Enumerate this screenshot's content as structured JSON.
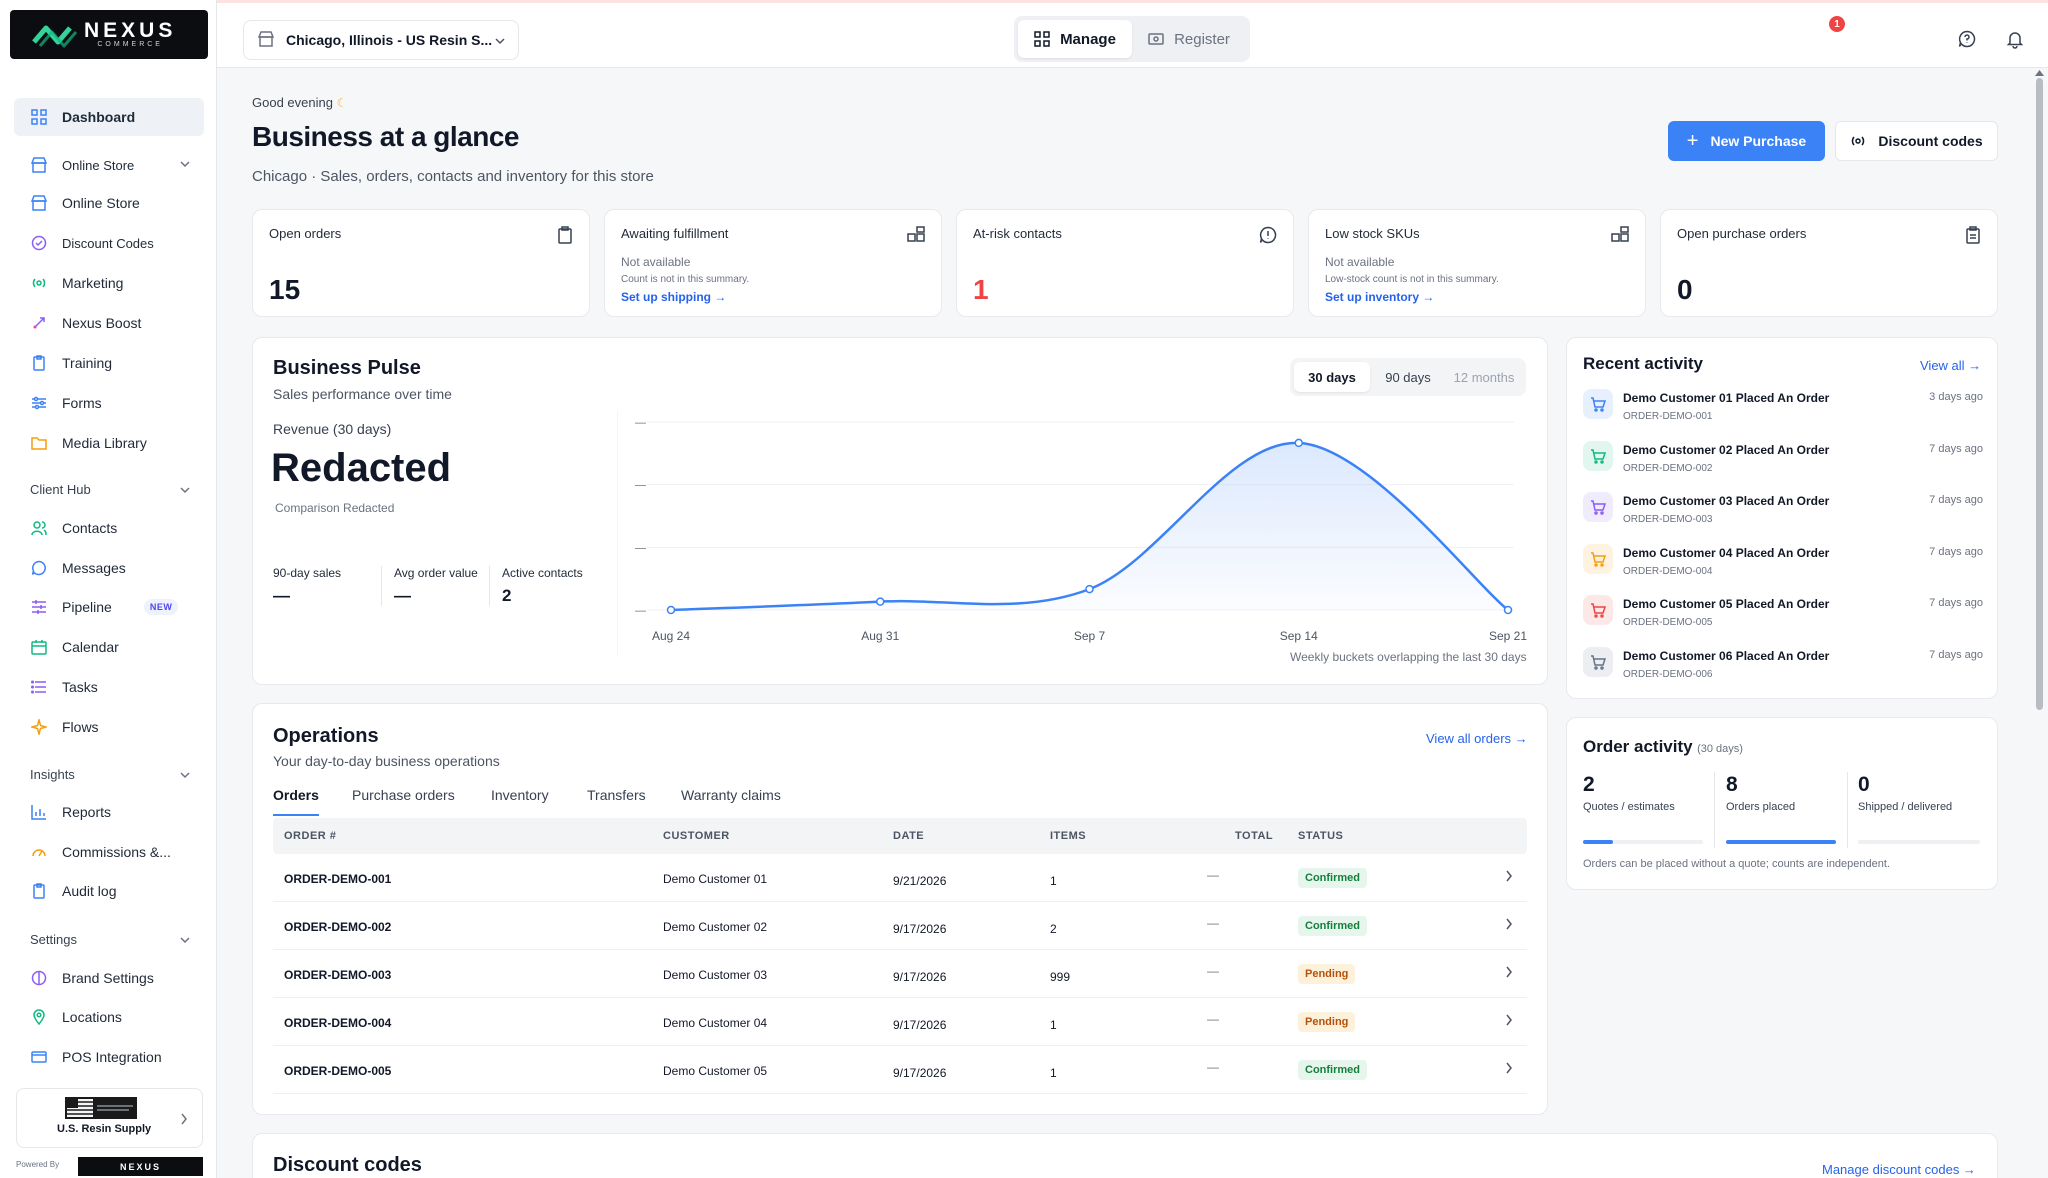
{
  "colors": {
    "accent": "#3b82f6",
    "danger": "#ef4444",
    "success": "#15803d",
    "warning": "#b45309"
  },
  "brand": {
    "name": "NEXUS",
    "tagline": "COMMERCE"
  },
  "sidebar": {
    "items": [
      {
        "label": "Dashboard",
        "icon": "grid-icon"
      },
      {
        "label": "Online Store",
        "icon": "store-icon"
      },
      {
        "label": "Online Store",
        "icon": "store-icon"
      },
      {
        "label": "Discount Codes",
        "icon": "badge-check-icon"
      },
      {
        "label": "Marketing",
        "icon": "broadcast-icon"
      },
      {
        "label": "Nexus Boost",
        "icon": "rocket-icon"
      },
      {
        "label": "Training",
        "icon": "clipboard-icon"
      },
      {
        "label": "Forms",
        "icon": "sliders-icon"
      },
      {
        "label": "Media Library",
        "icon": "folder-icon"
      },
      {
        "label": "Contacts",
        "icon": "users-icon"
      },
      {
        "label": "Messages",
        "icon": "chat-icon"
      },
      {
        "label": "Pipeline",
        "icon": "pipeline-icon",
        "badge": "NEW"
      },
      {
        "label": "Calendar",
        "icon": "calendar-icon"
      },
      {
        "label": "Tasks",
        "icon": "list-icon"
      },
      {
        "label": "Flows",
        "icon": "sparkle-icon"
      },
      {
        "label": "Reports",
        "icon": "bar-chart-icon"
      },
      {
        "label": "Commissions &...",
        "icon": "gauge-icon"
      },
      {
        "label": "Audit log",
        "icon": "clipboard-icon"
      },
      {
        "label": "Brand Settings",
        "icon": "palette-icon"
      },
      {
        "label": "Locations",
        "icon": "pin-icon"
      },
      {
        "label": "POS Integration",
        "icon": "card-icon"
      }
    ],
    "sections": {
      "client_hub": "Client Hub",
      "insights": "Insights",
      "settings": "Settings"
    },
    "store_card": {
      "name": "U.S. Resin Supply"
    },
    "powered_by": "Powered By"
  },
  "topbar": {
    "store": "Chicago, Illinois - US Resin S...",
    "mode": {
      "manage": "Manage",
      "register": "Register"
    },
    "notifications": "1"
  },
  "header": {
    "greeting": "Good evening",
    "title": "Business at a glance",
    "subtitle": "Chicago · Sales, orders, contacts and inventory for this store",
    "new_purchase": "New Purchase",
    "discount_codes": "Discount codes"
  },
  "kpis": [
    {
      "label": "Open orders",
      "value": "15"
    },
    {
      "label": "Awaiting fulfillment",
      "na": "Not available",
      "note": "Count is not in this summary.",
      "link": "Set up shipping →"
    },
    {
      "label": "At-risk contacts",
      "value": "1"
    },
    {
      "label": "Low stock SKUs",
      "na": "Not available",
      "note": "Low-stock count is not in this summary.",
      "link": "Set up inventory →"
    },
    {
      "label": "Open purchase orders",
      "value": "0"
    }
  ],
  "pulse": {
    "title": "Business Pulse",
    "subtitle": "Sales performance over time",
    "ranges": [
      "30 days",
      "90 days",
      "12 months"
    ],
    "revenue_label": "Revenue (30 days)",
    "revenue_value": "Redacted",
    "comparison": "Comparison Redacted",
    "stats": [
      {
        "label": "90-day sales",
        "value": "—"
      },
      {
        "label": "Avg order value",
        "value": "—"
      },
      {
        "label": "Active contacts",
        "value": "2"
      }
    ],
    "y_ticks": [
      "—",
      "—",
      "—",
      "—"
    ],
    "note": "Weekly buckets overlapping the last 30 days"
  },
  "chart_data": {
    "type": "area",
    "x": [
      "Aug 24",
      "Aug 31",
      "Sep 7",
      "Sep 14",
      "Sep 21"
    ],
    "values": [
      0,
      2,
      5,
      40,
      0
    ],
    "ylim": [
      0,
      45
    ],
    "grid": true,
    "xlabel": "",
    "ylabel": ""
  },
  "activity": {
    "title": "Recent activity",
    "view_all": "View all →",
    "items": [
      {
        "title": "Demo Customer 01 Placed An Order",
        "order": "ORDER-DEMO-001",
        "time": "3 days ago"
      },
      {
        "title": "Demo Customer 02 Placed An Order",
        "order": "ORDER-DEMO-002",
        "time": "7 days ago"
      },
      {
        "title": "Demo Customer 03 Placed An Order",
        "order": "ORDER-DEMO-003",
        "time": "7 days ago"
      },
      {
        "title": "Demo Customer 04 Placed An Order",
        "order": "ORDER-DEMO-004",
        "time": "7 days ago"
      },
      {
        "title": "Demo Customer 05 Placed An Order",
        "order": "ORDER-DEMO-005",
        "time": "7 days ago"
      },
      {
        "title": "Demo Customer 06 Placed An Order",
        "order": "ORDER-DEMO-006",
        "time": "7 days ago"
      }
    ],
    "icon_colors": [
      "#3b82f6",
      "#10b981",
      "#8b5cf6",
      "#f59e0b",
      "#ef4444",
      "#64748b"
    ]
  },
  "order_activity": {
    "title": "Order activity",
    "period": "(30 days)",
    "stats": [
      {
        "value": "2",
        "label": "Quotes / estimates",
        "fill": 0.25
      },
      {
        "value": "8",
        "label": "Orders placed",
        "fill": 1.0
      },
      {
        "value": "0",
        "label": "Shipped / delivered",
        "fill": 0
      }
    ],
    "note": "Orders can be placed without a quote; counts are independent."
  },
  "operations": {
    "title": "Operations",
    "subtitle": "Your day-to-day business operations",
    "view_all": "View all orders →",
    "tabs": [
      "Orders",
      "Purchase orders",
      "Inventory",
      "Transfers",
      "Warranty claims"
    ],
    "columns": [
      "ORDER #",
      "CUSTOMER",
      "DATE",
      "ITEMS",
      "TOTAL",
      "STATUS"
    ],
    "rows": [
      {
        "order": "ORDER-DEMO-001",
        "customer": "Demo Customer 01",
        "date": "9/21/2026",
        "items": "1",
        "total": "—",
        "status": "Confirmed"
      },
      {
        "order": "ORDER-DEMO-002",
        "customer": "Demo Customer 02",
        "date": "9/17/2026",
        "items": "2",
        "total": "—",
        "status": "Confirmed"
      },
      {
        "order": "ORDER-DEMO-003",
        "customer": "Demo Customer 03",
        "date": "9/17/2026",
        "items": "999",
        "total": "—",
        "status": "Pending"
      },
      {
        "order": "ORDER-DEMO-004",
        "customer": "Demo Customer 04",
        "date": "9/17/2026",
        "items": "1",
        "total": "—",
        "status": "Pending"
      },
      {
        "order": "ORDER-DEMO-005",
        "customer": "Demo Customer 05",
        "date": "9/17/2026",
        "items": "1",
        "total": "—",
        "status": "Confirmed"
      }
    ]
  },
  "discounts": {
    "title": "Discount codes",
    "manage": "Manage discount codes →"
  }
}
